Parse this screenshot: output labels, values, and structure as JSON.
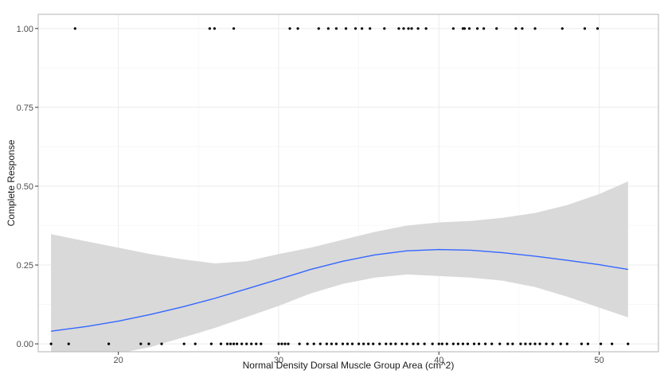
{
  "chart_data": {
    "type": "scatter",
    "xlabel": "Normal Density Dorsal Muscle Group Area (cm^2)",
    "ylabel": "Complete Response",
    "xlim": [
      15.0,
      53.7
    ],
    "ylim": [
      -0.025,
      1.045
    ],
    "x_ticks": [
      {
        "value": 20,
        "label": "20"
      },
      {
        "value": 30,
        "label": "30"
      },
      {
        "value": 40,
        "label": "40"
      },
      {
        "value": 50,
        "label": "50"
      }
    ],
    "y_ticks": [
      {
        "value": 0,
        "label": "0.00"
      },
      {
        "value": 0.25,
        "label": "0.25"
      },
      {
        "value": 0.5,
        "label": "0.50"
      },
      {
        "value": 0.75,
        "label": "0.75"
      },
      {
        "value": 1,
        "label": "1.00"
      }
    ],
    "grid": true,
    "points_y1": [
      17.3,
      25.7,
      26.0,
      27.2,
      30.7,
      31.2,
      32.5,
      33.1,
      33.6,
      34.2,
      34.8,
      35.2,
      35.7,
      36.6,
      37.5,
      37.8,
      38.1,
      38.3,
      38.7,
      39.2,
      40.9,
      41.5,
      41.6,
      41.9,
      42.4,
      42.8,
      43.6,
      44.8,
      45.2,
      46.0,
      47.7,
      49.1,
      49.9
    ],
    "points_y0": [
      15.8,
      16.9,
      19.4,
      21.4,
      21.9,
      22.7,
      24.1,
      24.8,
      25.8,
      26.4,
      26.8,
      27.0,
      27.2,
      27.4,
      27.7,
      28.0,
      28.3,
      28.6,
      28.9,
      30.0,
      30.2,
      30.4,
      30.6,
      31.3,
      31.8,
      32.2,
      32.6,
      33.0,
      33.3,
      33.6,
      34.0,
      34.3,
      34.6,
      35.0,
      35.3,
      35.6,
      35.9,
      36.3,
      36.7,
      37.0,
      37.3,
      37.7,
      38.0,
      38.4,
      38.7,
      39.1,
      39.6,
      40.0,
      40.2,
      40.5,
      40.9,
      41.2,
      41.5,
      41.8,
      42.2,
      42.5,
      42.9,
      43.3,
      43.8,
      44.3,
      44.6,
      45.1,
      45.4,
      45.7,
      46.0,
      46.3,
      46.7,
      47.1,
      47.6,
      48.0,
      48.9,
      49.3,
      50.1,
      50.8,
      51.8
    ],
    "smooth": {
      "x": [
        15.8,
        18.0,
        20.0,
        22.0,
        24.0,
        26.0,
        28.0,
        30.0,
        32.0,
        34.0,
        36.0,
        38.0,
        40.0,
        42.0,
        44.0,
        46.0,
        48.0,
        50.0,
        51.8
      ],
      "y": [
        0.04,
        0.055,
        0.072,
        0.093,
        0.117,
        0.144,
        0.174,
        0.205,
        0.236,
        0.262,
        0.282,
        0.295,
        0.299,
        0.297,
        0.289,
        0.278,
        0.265,
        0.251,
        0.236
      ],
      "lower": [
        -0.06,
        -0.05,
        -0.03,
        -0.01,
        0.02,
        0.05,
        0.085,
        0.12,
        0.16,
        0.19,
        0.21,
        0.22,
        0.215,
        0.21,
        0.2,
        0.18,
        0.15,
        0.115,
        0.084
      ],
      "upper": [
        0.348,
        0.325,
        0.305,
        0.285,
        0.268,
        0.255,
        0.262,
        0.285,
        0.305,
        0.33,
        0.355,
        0.375,
        0.385,
        0.39,
        0.4,
        0.415,
        0.44,
        0.475,
        0.515
      ]
    },
    "colors": {
      "line": "#3366FF",
      "ribbon": "#D9D9D9",
      "points": "#000000",
      "grid": "#EBEBEB",
      "panel_border": "#B3B3B3"
    }
  }
}
